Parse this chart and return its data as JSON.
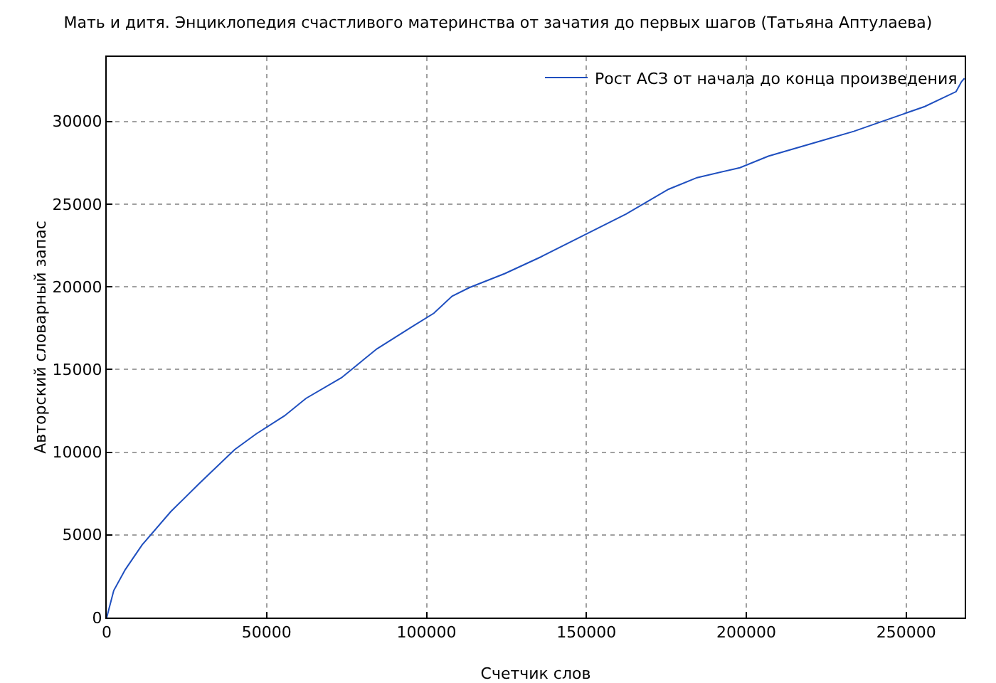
{
  "chart_data": {
    "type": "line",
    "title": "Мать и дитя. Энциклопедия счастливого материнства от зачатия до первых шагов (Татьяна Аптулаева)",
    "xlabel": "Счетчик слов",
    "ylabel": "Авторский словарный запас",
    "x": [
      0,
      2200,
      5800,
      11100,
      20000,
      28900,
      40000,
      46700,
      55600,
      62300,
      73400,
      84500,
      95600,
      102300,
      108000,
      113400,
      124500,
      135700,
      149000,
      162400,
      175700,
      184600,
      198000,
      206900,
      224700,
      233600,
      242500,
      255800,
      265600,
      267300,
      268200
    ],
    "series": [
      {
        "name": "Рост АСЗ от начала до конца произведения",
        "color": "#1f4fbf",
        "values": [
          0,
          1630,
          2900,
          4400,
          6400,
          8100,
          10150,
          11100,
          12200,
          13250,
          14500,
          16250,
          17600,
          18400,
          19430,
          19950,
          20800,
          21800,
          23100,
          24400,
          25900,
          26600,
          27200,
          27900,
          28900,
          29400,
          30000,
          30900,
          31800,
          32400,
          32600
        ]
      }
    ],
    "xlim": [
      0,
      268300
    ],
    "ylim": [
      0,
      33900
    ],
    "xticks": [
      0,
      50000,
      100000,
      150000,
      200000,
      250000
    ],
    "yticks": [
      0,
      5000,
      10000,
      15000,
      20000,
      25000,
      30000
    ],
    "grid": true,
    "legend": "top right",
    "marker": "none",
    "line_style": "solid"
  }
}
